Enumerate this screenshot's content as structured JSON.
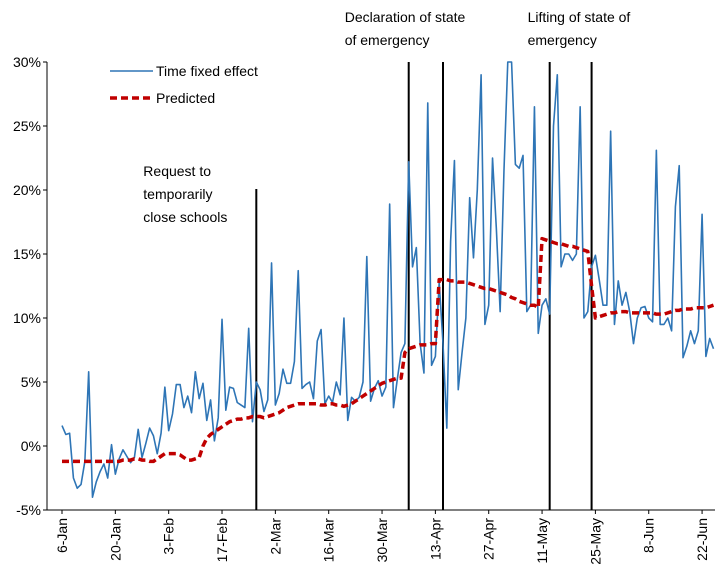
{
  "chart_data": {
    "type": "line",
    "categories": [
      "6-Jan",
      null,
      null,
      null,
      null,
      null,
      null,
      null,
      null,
      null,
      null,
      null,
      null,
      null,
      "20-Jan",
      null,
      null,
      null,
      null,
      null,
      null,
      null,
      null,
      null,
      null,
      null,
      null,
      null,
      "3-Feb",
      null,
      null,
      null,
      null,
      null,
      null,
      null,
      null,
      null,
      null,
      null,
      null,
      null,
      "17-Feb",
      null,
      null,
      null,
      null,
      null,
      null,
      null,
      null,
      null,
      null,
      null,
      null,
      null,
      "2-Mar",
      null,
      null,
      null,
      null,
      null,
      null,
      null,
      null,
      null,
      null,
      null,
      null,
      null,
      "16-Mar",
      null,
      null,
      null,
      null,
      null,
      null,
      null,
      null,
      null,
      null,
      null,
      null,
      null,
      "30-Mar",
      null,
      null,
      null,
      null,
      null,
      null,
      null,
      null,
      null,
      null,
      null,
      null,
      null,
      "13-Apr",
      null,
      null,
      null,
      null,
      null,
      null,
      null,
      null,
      null,
      null,
      null,
      null,
      null,
      "27-Apr",
      null,
      null,
      null,
      null,
      null,
      null,
      null,
      null,
      null,
      null,
      null,
      null,
      null,
      "11-May",
      null,
      null,
      null,
      null,
      null,
      null,
      null,
      null,
      null,
      null,
      null,
      null,
      null,
      "25-May",
      null,
      null,
      null,
      null,
      null,
      null,
      null,
      null,
      null,
      null,
      null,
      null,
      null,
      "8-Jun",
      null,
      null,
      null,
      null,
      null,
      null,
      null,
      null,
      null,
      null,
      null,
      null,
      null,
      "22-Jun",
      null,
      null,
      null
    ],
    "series": [
      {
        "name": "Time fixed effect",
        "color": "#2e75b6",
        "dash": "solid",
        "values": [
          1.6,
          0.9,
          1.0,
          -2.5,
          -3.3,
          -3.0,
          -1.2,
          5.8,
          -4.0,
          -2.8,
          -2.0,
          -1.4,
          -2.5,
          0.1,
          -2.2,
          -1.0,
          -0.3,
          -0.8,
          -1.3,
          -0.9,
          1.3,
          -0.9,
          0.2,
          1.4,
          0.8,
          -0.6,
          1.0,
          4.6,
          1.2,
          2.5,
          4.8,
          4.8,
          3.0,
          3.9,
          2.6,
          5.8,
          3.7,
          4.9,
          2.0,
          3.6,
          0.4,
          2.2,
          9.9,
          2.8,
          4.6,
          4.5,
          3.4,
          3.2,
          3.0,
          9.2,
          1.9,
          5.0,
          4.4,
          2.7,
          3.6,
          14.3,
          3.2,
          4.1,
          6.0,
          4.9,
          4.9,
          6.6,
          13.7,
          4.5,
          4.8,
          5.0,
          3.7,
          8.2,
          9.1,
          3.3,
          3.9,
          3.4,
          5.0,
          4.0,
          10.0,
          2.0,
          3.8,
          3.5,
          3.8,
          5.0,
          14.8,
          3.5,
          4.5,
          5.1,
          3.9,
          4.6,
          18.9,
          3.0,
          5.2,
          7.3,
          8.0,
          22.2,
          14.0,
          15.5,
          8.0,
          5.7,
          26.8,
          6.3,
          7.0,
          12.8,
          8.0,
          1.4,
          16.0,
          22.3,
          4.4,
          7.3,
          10.0,
          19.4,
          14.7,
          20.0,
          29.0,
          9.5,
          11.0,
          22.5,
          17.0,
          10.5,
          21.5,
          30.0,
          30.0,
          22.0,
          21.7,
          22.7,
          10.5,
          11.0,
          26.5,
          8.8,
          11.0,
          11.5,
          10.3,
          25.0,
          29.0,
          14.0,
          15.0,
          15.0,
          14.5,
          15.0,
          26.5,
          10.0,
          10.5,
          14.0,
          14.9,
          13.0,
          11.0,
          11.0,
          24.6,
          9.5,
          12.9,
          11.0,
          12.0,
          10.5,
          8.0,
          10.0,
          10.8,
          10.9,
          10.0,
          9.7,
          23.1,
          9.5,
          9.5,
          10.0,
          9.0,
          18.7,
          21.9,
          6.9,
          7.8,
          9.0,
          8.0,
          9.0,
          18.1,
          7.0,
          8.4,
          7.6
        ]
      },
      {
        "name": "Predicted",
        "color": "#c00000",
        "dash": "dashed",
        "values": [
          -1.2,
          -1.2,
          -1.2,
          -1.2,
          -1.2,
          -1.2,
          -1.2,
          -1.2,
          -1.2,
          -1.2,
          -1.2,
          -1.2,
          -1.2,
          -1.2,
          -1.2,
          -1.2,
          -1.1,
          -1.1,
          -1.1,
          -1.0,
          -1.0,
          -1.1,
          -1.1,
          -1.2,
          -1.2,
          -1.0,
          -0.8,
          -0.6,
          -0.6,
          -0.6,
          -0.6,
          -0.7,
          -0.9,
          -1.1,
          -1.1,
          -1.0,
          -0.9,
          0.0,
          0.6,
          0.9,
          1.1,
          1.3,
          1.5,
          1.7,
          1.9,
          2.0,
          2.1,
          2.1,
          2.2,
          2.2,
          2.3,
          2.3,
          2.3,
          2.2,
          2.3,
          2.4,
          2.5,
          2.6,
          2.8,
          3.0,
          3.1,
          3.2,
          3.3,
          3.3,
          3.3,
          3.3,
          3.3,
          3.3,
          3.2,
          3.2,
          3.3,
          3.3,
          3.2,
          3.2,
          3.1,
          3.2,
          3.3,
          3.5,
          3.7,
          3.9,
          4.1,
          4.3,
          4.5,
          4.7,
          4.9,
          5.0,
          5.1,
          5.2,
          5.3,
          5.3,
          7.3,
          7.6,
          7.7,
          7.8,
          7.9,
          7.9,
          7.9,
          8.0,
          8.0,
          13.0,
          13.0,
          13.0,
          12.9,
          12.9,
          12.8,
          12.8,
          12.8,
          12.7,
          12.6,
          12.5,
          12.4,
          12.3,
          12.3,
          12.2,
          12.1,
          12.0,
          11.9,
          11.8,
          11.6,
          11.5,
          11.3,
          11.2,
          11.1,
          11.0,
          11.0,
          10.8,
          16.2,
          16.1,
          16.0,
          15.9,
          15.8,
          15.8,
          15.7,
          15.6,
          15.6,
          15.5,
          15.4,
          15.3,
          15.2,
          12.5,
          10.0,
          10.1,
          10.2,
          10.3,
          10.4,
          10.4,
          10.5,
          10.5,
          10.5,
          10.4,
          10.4,
          10.4,
          10.4,
          10.4,
          10.4,
          10.4,
          10.3,
          10.3,
          10.3,
          10.4,
          10.5,
          10.6,
          10.6,
          10.7,
          10.7,
          10.7,
          10.8,
          10.8,
          10.8,
          10.8,
          10.9,
          11.0
        ]
      }
    ],
    "ylim": [
      -5,
      30
    ],
    "yticks": [
      {
        "value": -5,
        "label": "-5%"
      },
      {
        "value": 0,
        "label": "0%"
      },
      {
        "value": 5,
        "label": "5%"
      },
      {
        "value": 10,
        "label": "10%"
      },
      {
        "value": 15,
        "label": "15%"
      },
      {
        "value": 20,
        "label": "20%"
      },
      {
        "value": 25,
        "label": "25%"
      },
      {
        "value": 30,
        "label": "30%"
      }
    ],
    "grid": false,
    "legend": "top-left",
    "event_lines": [
      51,
      91,
      100,
      128,
      139
    ],
    "annotations": [
      {
        "at": 51,
        "lines": [
          "Request to",
          "temporarily",
          "close schools"
        ]
      },
      {
        "at": 91,
        "lines": [
          "Declaration of state",
          "of emergency"
        ]
      },
      {
        "at": 139,
        "lines": [
          "Lifting of state of",
          "emergency"
        ]
      }
    ]
  }
}
